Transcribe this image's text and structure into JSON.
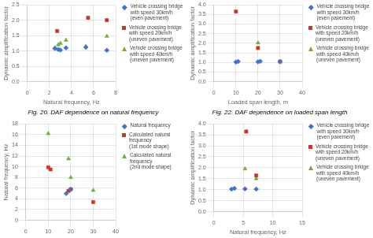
{
  "chart_data": [
    {
      "type": "scatter",
      "title": "Fig. 20. DAF dependence on natural frequency",
      "xlabel": "Natural frequency, Hz",
      "ylabel": "Dynamic amplification factor",
      "xlim": [
        0,
        8
      ],
      "ylim": [
        0,
        2.5
      ],
      "xticks": [
        0,
        2,
        4,
        6,
        8
      ],
      "yticks": [
        {
          "value": 0,
          "label": "0.0"
        },
        0.5,
        {
          "value": 1,
          "label": "1.0"
        },
        1.5,
        {
          "value": 2,
          "label": "2.0"
        },
        2.5
      ],
      "grid": true,
      "legend": "right",
      "series": [
        {
          "name": "Vehicle crossing bridge\nwith speed 30km/h\n(even pavement)",
          "color": "#4472c4",
          "marker": "diamond",
          "x": [
            2.5,
            2.8,
            3.0,
            3.5,
            5.3,
            7.2
          ],
          "values": [
            1.08,
            1.05,
            1.03,
            1.1,
            1.12,
            1.02
          ]
        },
        {
          "name": "Vehicle crossing bridge\nwith speed 20km/h\n(uneven pavement)",
          "color": "#c0392b",
          "marker": "square",
          "x": [
            2.7,
            5.5,
            7.2
          ],
          "values": [
            1.65,
            2.08,
            2.0
          ]
        },
        {
          "name": "Vehicle crossing bridge\nwith speed 40km/h\n(uneven pavement)",
          "color": "#70ad47",
          "marker": "triangle",
          "x": [
            2.5,
            2.8,
            3.0,
            3.5,
            5.3,
            7.2
          ],
          "values": [
            1.1,
            1.2,
            1.25,
            1.35,
            1.15,
            1.48
          ]
        }
      ]
    },
    {
      "type": "scatter",
      "title": "Fig. 22. DAF dependence on loaded span length",
      "xlabel": "Loaded span length, m",
      "ylabel": "Dynamic amplification factor",
      "xlim": [
        0,
        40
      ],
      "ylim": [
        0,
        4
      ],
      "xticks": [
        0,
        10,
        20,
        30,
        40
      ],
      "yticks": [
        {
          "value": 0,
          "label": "0.0"
        },
        0.5,
        {
          "value": 1,
          "label": "1.0"
        },
        1.5,
        {
          "value": 2,
          "label": "2.0"
        },
        2.5,
        {
          "value": 3,
          "label": "3.0"
        },
        3.5,
        {
          "value": 4,
          "label": "4.0"
        }
      ],
      "grid": true,
      "legend": "right",
      "series": [
        {
          "name": "Vehicle crossing bridge\nwith speed 30km/h\n(even pavement)",
          "color": "#4472c4",
          "marker": "diamond",
          "x": [
            10,
            11,
            20,
            21,
            30
          ],
          "values": [
            1.02,
            1.05,
            1.03,
            1.06,
            1.04
          ]
        },
        {
          "name": "Vehicle crossing bridge\nwith speed 20km/h\n(uneven pavement)",
          "color": "#c0392b",
          "marker": "square",
          "x": [
            10,
            20,
            30
          ],
          "values": [
            3.65,
            1.75,
            1.05
          ]
        },
        {
          "name": "Vehicle crossing bridge\nwith speed 40km/h\n(uneven pavement)",
          "color": "#70ad47",
          "marker": "triangle",
          "x": [
            20
          ],
          "values": [
            2.02
          ]
        }
      ]
    },
    {
      "type": "scatter",
      "ylabel": "Natural frequency, Hz",
      "xlim": [
        0,
        40
      ],
      "ylim": [
        0,
        18
      ],
      "xticks": [
        0,
        10,
        20,
        30,
        40
      ],
      "yticks": [
        0,
        2,
        4,
        6,
        8,
        10,
        12,
        14,
        16,
        18
      ],
      "grid": true,
      "legend": "right",
      "series": [
        {
          "name": "Natural frequency",
          "color": "#4472c4",
          "marker": "diamond",
          "x": [
            18,
            20
          ],
          "values": [
            5.0,
            5.8
          ]
        },
        {
          "name": "Calculated natural\nfrequency\n(1st mode shape)",
          "color": "#c0392b",
          "marker": "square",
          "x": [
            10,
            11,
            19,
            20,
            30
          ],
          "values": [
            9.9,
            9.5,
            5.5,
            5.8,
            3.4
          ]
        },
        {
          "name": "Calculated natural\nfrequency\n(2nd mode shape)",
          "color": "#70ad47",
          "marker": "triangle",
          "x": [
            10,
            19,
            20,
            30
          ],
          "values": [
            16.2,
            11.5,
            8.0,
            5.6
          ]
        }
      ]
    },
    {
      "type": "scatter",
      "xlabel": "Natural frequency, Hz",
      "ylabel": "Dynamic amplification factor",
      "xlim": [
        0,
        15
      ],
      "ylim": [
        0,
        4
      ],
      "xticks": [
        0,
        5,
        10,
        15
      ],
      "yticks": [
        {
          "value": 0,
          "label": "0.0"
        },
        0.5,
        {
          "value": 1,
          "label": "1.0"
        },
        1.5,
        {
          "value": 2,
          "label": "2.0"
        },
        2.5,
        {
          "value": 3,
          "label": "3.0"
        },
        3.5,
        {
          "value": 4,
          "label": "4.0"
        }
      ],
      "grid": true,
      "legend": "right",
      "series": [
        {
          "name": "Vehicle crossing bridge\nwith speed 30km/h\n(even pavement)",
          "color": "#4472c4",
          "marker": "diamond",
          "x": [
            3.0,
            3.5,
            5.3,
            7.2
          ],
          "values": [
            1.03,
            1.06,
            1.04,
            1.03
          ]
        },
        {
          "name": "Vehicle crossing bridge\nwith speed 20km/h\n(uneven pavement)",
          "color": "#c0392b",
          "marker": "square",
          "x": [
            5.5,
            7.2
          ],
          "values": [
            3.65,
            1.65
          ]
        },
        {
          "name": "Vehicle crossing bridge\nwith speed 40km/h\n(uneven pavement)",
          "color": "#70ad47",
          "marker": "triangle",
          "x": [
            5.3,
            7.2
          ],
          "values": [
            1.95,
            1.5
          ]
        }
      ]
    }
  ]
}
